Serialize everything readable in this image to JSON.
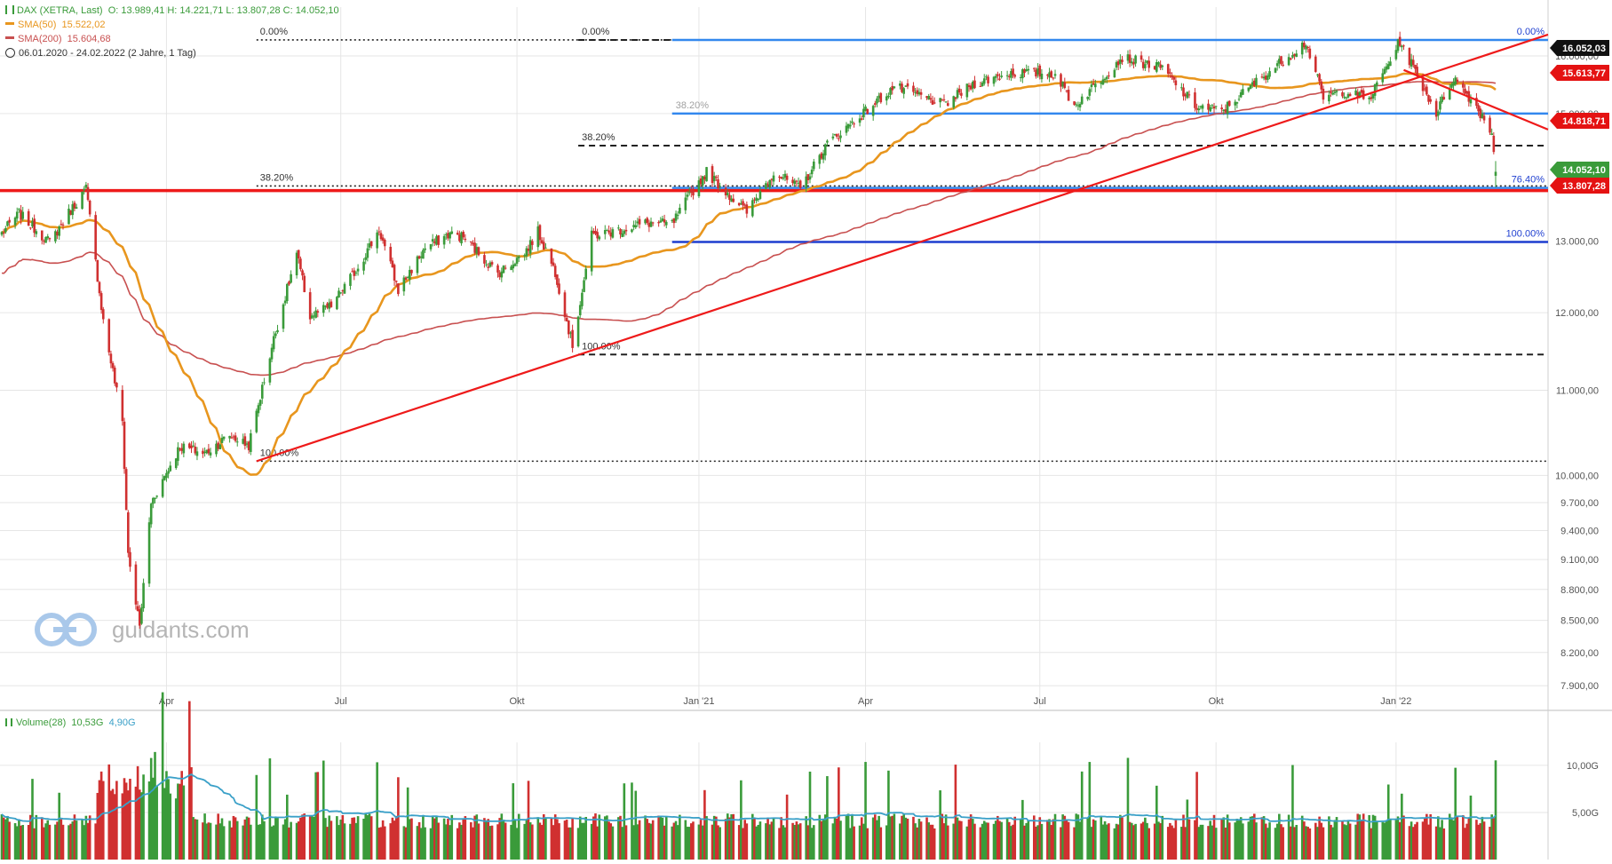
{
  "header": {
    "title": "DAX (XETRA, Last)",
    "ohlc": "O: 13.989,41  H: 14.221,71  L: 13.807,28  C: 14.052,10",
    "sma50_label": "SMA(50)",
    "sma50_value": "15.522,02",
    "sma200_label": "SMA(200)",
    "sma200_value": "15.604,68",
    "period": "06.01.2020 - 24.02.2022   (2 Jahre, 1 Tag)",
    "volume_label": "Volume(28)",
    "volume_value": "10,53G",
    "volume_avg": "4,90G"
  },
  "watermark": "guidants.com",
  "colors": {
    "up": "#3a9b3a",
    "down": "#d03030",
    "sma50": "#e8961e",
    "sma200": "#c85050",
    "fib_blue": "#3388ee",
    "fib_darkblue": "#1f3fd0",
    "trend_red": "#ee1a1a",
    "volume_avg": "#3aa0c8"
  },
  "chart_data": {
    "type": "candlestick",
    "title": "DAX (XETRA, Last)",
    "period": [
      "2020-01-06",
      "2022-02-24"
    ],
    "y_scale": "log",
    "ylim": [
      7700,
      16900
    ],
    "y_ticks": [
      {
        "value": 16000,
        "label": "16.000,00"
      },
      {
        "value": 15000,
        "label": "15.000,00"
      },
      {
        "value": 13000,
        "label": "13.000,00"
      },
      {
        "value": 12000,
        "label": "12.000,00"
      },
      {
        "value": 11000,
        "label": "11.000,00"
      },
      {
        "value": 10000,
        "label": "10.000,00"
      },
      {
        "value": 9700,
        "label": "9.700,00"
      },
      {
        "value": 9400,
        "label": "9.400,00"
      },
      {
        "value": 9100,
        "label": "9.100,00"
      },
      {
        "value": 8800,
        "label": "8.800,00"
      },
      {
        "value": 8500,
        "label": "8.500,00"
      },
      {
        "value": 8200,
        "label": "8.200,00"
      },
      {
        "value": 7900,
        "label": "7.900,00"
      }
    ],
    "x_ticks": [
      {
        "label": "Apr",
        "date": "2020-04-01"
      },
      {
        "label": "Jul",
        "date": "2020-07-01"
      },
      {
        "label": "Okt",
        "date": "2020-10-01"
      },
      {
        "label": "Jan '21",
        "date": "2021-01-04"
      },
      {
        "label": "Apr",
        "date": "2021-04-01"
      },
      {
        "label": "Jul",
        "date": "2021-07-01"
      },
      {
        "label": "Okt",
        "date": "2021-10-01"
      },
      {
        "label": "Jan '22",
        "date": "2022-01-03"
      }
    ],
    "price_path": [
      [
        "2020-01-06",
        13120
      ],
      [
        "2020-01-15",
        13410
      ],
      [
        "2020-01-31",
        12980
      ],
      [
        "2020-02-10",
        13420
      ],
      [
        "2020-02-19",
        13790
      ],
      [
        "2020-02-28",
        11890
      ],
      [
        "2020-03-09",
        10620
      ],
      [
        "2020-03-12",
        9160
      ],
      [
        "2020-03-18",
        8440
      ],
      [
        "2020-03-24",
        9700
      ],
      [
        "2020-04-08",
        10330
      ],
      [
        "2020-04-21",
        10250
      ],
      [
        "2020-05-04",
        10460
      ],
      [
        "2020-05-14",
        10340
      ],
      [
        "2020-05-27",
        11650
      ],
      [
        "2020-06-08",
        12820
      ],
      [
        "2020-06-15",
        11950
      ],
      [
        "2020-06-26",
        12090
      ],
      [
        "2020-07-10",
        12630
      ],
      [
        "2020-07-21",
        13170
      ],
      [
        "2020-07-31",
        12310
      ],
      [
        "2020-08-14",
        12900
      ],
      [
        "2020-08-27",
        13110
      ],
      [
        "2020-09-03",
        13060
      ],
      [
        "2020-09-21",
        12540
      ],
      [
        "2020-10-05",
        12830
      ],
      [
        "2020-10-12",
        13140
      ],
      [
        "2020-10-21",
        12560
      ],
      [
        "2020-10-30",
        11560
      ],
      [
        "2020-11-09",
        13080
      ],
      [
        "2020-11-20",
        13140
      ],
      [
        "2020-12-08",
        13270
      ],
      [
        "2020-12-21",
        13250
      ],
      [
        "2020-12-31",
        13720
      ],
      [
        "2021-01-08",
        14050
      ],
      [
        "2021-01-29",
        13430
      ],
      [
        "2021-02-12",
        14050
      ],
      [
        "2021-02-26",
        13790
      ],
      [
        "2021-03-12",
        14500
      ],
      [
        "2021-03-31",
        15010
      ],
      [
        "2021-04-16",
        15460
      ],
      [
        "2021-05-12",
        15150
      ],
      [
        "2021-05-28",
        15520
      ],
      [
        "2021-06-16",
        15700
      ],
      [
        "2021-07-09",
        15690
      ],
      [
        "2021-07-19",
        15130
      ],
      [
        "2021-08-13",
        15980
      ],
      [
        "2021-09-03",
        15780
      ],
      [
        "2021-09-20",
        15130
      ],
      [
        "2021-10-04",
        15040
      ],
      [
        "2021-10-22",
        15540
      ],
      [
        "2021-11-17",
        16250
      ],
      [
        "2021-11-26",
        15260
      ],
      [
        "2021-12-06",
        15380
      ],
      [
        "2021-12-20",
        15240
      ],
      [
        "2022-01-05",
        16270
      ],
      [
        "2022-01-24",
        15010
      ],
      [
        "2022-02-02",
        15620
      ],
      [
        "2022-02-14",
        15120
      ],
      [
        "2022-02-22",
        14690
      ],
      [
        "2022-02-24",
        14052.1
      ]
    ],
    "last_candle": {
      "date": "2022-02-24",
      "open": 13989.41,
      "high": 14221.71,
      "low": 13807.28,
      "close": 14052.1
    },
    "series": [
      {
        "name": "SMA(50)",
        "last": 15522.02
      },
      {
        "name": "SMA(200)",
        "last": 15604.68
      }
    ],
    "price_labels": [
      {
        "value": 16052.03,
        "label": "16.052,03",
        "style": "black"
      },
      {
        "value": 15613.77,
        "label": "15.613,77",
        "style": "red"
      },
      {
        "value": 14818.71,
        "label": "14.818,71",
        "style": "red"
      },
      {
        "value": 14052.1,
        "label": "14.052,10",
        "style": "green"
      },
      {
        "value": 13807.28,
        "label": "13.807,28",
        "style": "red"
      }
    ],
    "fibonacci": [
      {
        "from_date": "2020-05-18",
        "to_date": "2022-02-24",
        "levels": [
          {
            "label": "0.00%",
            "value": 16290,
            "style": "dotted"
          },
          {
            "label": "38.20%",
            "value": 13830,
            "style": "dotted"
          },
          {
            "label": "100.00%",
            "value": 10160,
            "style": "dotted"
          }
        ]
      },
      {
        "from_date": "2020-11-02",
        "to_date": "2022-02-24",
        "levels": [
          {
            "label": "0.00%",
            "value": 16290,
            "style": "dashed"
          },
          {
            "label": "38.20%",
            "value": 14470,
            "style": "dashed"
          },
          {
            "label": "100.00%",
            "value": 11450,
            "style": "dashed"
          }
        ]
      },
      {
        "from_date": "2020-12-21",
        "to_date": "2022-02-24",
        "levels": [
          {
            "label": "0.00%",
            "value": 16290,
            "style": "blue"
          },
          {
            "label": "38.20%",
            "value": 15000,
            "style": "blue"
          },
          {
            "label": "76.40%",
            "value": 13800,
            "style": "blue"
          },
          {
            "label": "100.00%",
            "value": 12990,
            "style": "darkblue"
          }
        ]
      }
    ],
    "trendlines": [
      {
        "from": [
          "2020-05-18",
          10160
        ],
        "to": [
          "2022-02-24",
          16290
        ]
      },
      {
        "from": [
          "2022-01-07",
          15750
        ],
        "to": [
          "2022-02-24",
          15000
        ]
      }
    ],
    "support_line": 13760,
    "volume": {
      "name": "Volume(28)",
      "last": "10,53G",
      "avg": "4,90G",
      "ylim": [
        0,
        11500000000
      ],
      "y_ticks": [
        {
          "value": 10000000000,
          "label": "10,00G"
        },
        {
          "value": 5000000000,
          "label": "5,00G"
        }
      ]
    }
  }
}
